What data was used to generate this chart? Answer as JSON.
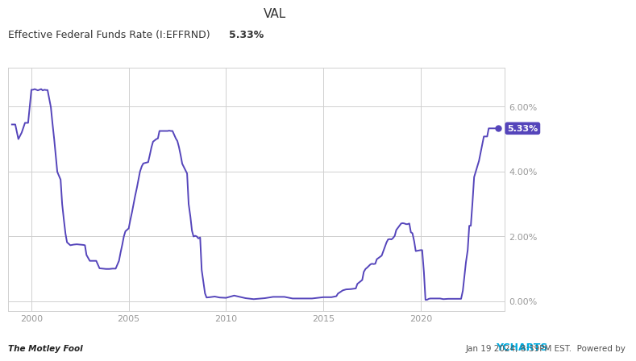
{
  "title": "VAL",
  "subtitle": "Effective Federal Funds Rate (I:EFFRND)",
  "subtitle_val": "5.33%",
  "line_color": "#5545bb",
  "bg_color": "#ffffff",
  "plot_bg_color": "#ffffff",
  "grid_color": "#d0d0d0",
  "label_color": "#333333",
  "tick_color": "#999999",
  "annotation_bg": "#5545bb",
  "annotation_text": "5.33%",
  "annotation_text_color": "#ffffff",
  "ylim": [
    -0.3,
    7.2
  ],
  "yticks": [
    0.0,
    2.0,
    4.0,
    6.0
  ],
  "xtick_positions": [
    2000,
    2005,
    2010,
    2015,
    2020
  ],
  "xtick_labels": [
    "2000",
    "2005",
    "2010",
    "2015",
    "2020"
  ],
  "xlim_left": 1998.8,
  "xlim_right": 2024.3,
  "footer_left": "The Motley Fool",
  "footer_right": "Jan 19 2024, 8:39PM EST.  Powered by YCHARTS",
  "data": [
    [
      1999.0,
      5.45
    ],
    [
      1999.17,
      5.45
    ],
    [
      1999.33,
      5.0
    ],
    [
      1999.5,
      5.2
    ],
    [
      1999.67,
      5.5
    ],
    [
      1999.83,
      5.5
    ],
    [
      2000.0,
      6.52
    ],
    [
      2000.08,
      6.52
    ],
    [
      2000.17,
      6.54
    ],
    [
      2000.33,
      6.5
    ],
    [
      2000.5,
      6.54
    ],
    [
      2000.58,
      6.5
    ],
    [
      2000.67,
      6.52
    ],
    [
      2000.75,
      6.51
    ],
    [
      2000.83,
      6.51
    ],
    [
      2001.0,
      5.98
    ],
    [
      2001.08,
      5.5
    ],
    [
      2001.17,
      5.0
    ],
    [
      2001.25,
      4.5
    ],
    [
      2001.33,
      3.99
    ],
    [
      2001.5,
      3.75
    ],
    [
      2001.58,
      3.0
    ],
    [
      2001.67,
      2.5
    ],
    [
      2001.75,
      2.09
    ],
    [
      2001.83,
      1.82
    ],
    [
      2002.0,
      1.73
    ],
    [
      2002.17,
      1.75
    ],
    [
      2002.33,
      1.76
    ],
    [
      2002.5,
      1.75
    ],
    [
      2002.67,
      1.74
    ],
    [
      2002.75,
      1.73
    ],
    [
      2002.83,
      1.43
    ],
    [
      2003.0,
      1.25
    ],
    [
      2003.33,
      1.25
    ],
    [
      2003.5,
      1.02
    ],
    [
      2003.67,
      1.01
    ],
    [
      2003.83,
      1.0
    ],
    [
      2004.0,
      1.0
    ],
    [
      2004.17,
      1.01
    ],
    [
      2004.33,
      1.01
    ],
    [
      2004.5,
      1.25
    ],
    [
      2004.58,
      1.5
    ],
    [
      2004.67,
      1.75
    ],
    [
      2004.75,
      2.0
    ],
    [
      2004.83,
      2.16
    ],
    [
      2005.0,
      2.25
    ],
    [
      2005.08,
      2.5
    ],
    [
      2005.17,
      2.75
    ],
    [
      2005.25,
      3.0
    ],
    [
      2005.33,
      3.25
    ],
    [
      2005.42,
      3.5
    ],
    [
      2005.5,
      3.75
    ],
    [
      2005.58,
      4.0
    ],
    [
      2005.67,
      4.16
    ],
    [
      2005.75,
      4.25
    ],
    [
      2006.0,
      4.29
    ],
    [
      2006.08,
      4.5
    ],
    [
      2006.17,
      4.75
    ],
    [
      2006.25,
      4.92
    ],
    [
      2006.42,
      5.0
    ],
    [
      2006.5,
      5.02
    ],
    [
      2006.58,
      5.25
    ],
    [
      2006.67,
      5.25
    ],
    [
      2006.75,
      5.25
    ],
    [
      2007.0,
      5.25
    ],
    [
      2007.08,
      5.26
    ],
    [
      2007.17,
      5.25
    ],
    [
      2007.25,
      5.25
    ],
    [
      2007.42,
      5.02
    ],
    [
      2007.5,
      4.94
    ],
    [
      2007.58,
      4.76
    ],
    [
      2007.67,
      4.5
    ],
    [
      2007.75,
      4.24
    ],
    [
      2008.0,
      3.94
    ],
    [
      2008.08,
      3.0
    ],
    [
      2008.17,
      2.61
    ],
    [
      2008.25,
      2.18
    ],
    [
      2008.33,
      2.0
    ],
    [
      2008.42,
      2.02
    ],
    [
      2008.5,
      2.0
    ],
    [
      2008.58,
      1.94
    ],
    [
      2008.67,
      1.97
    ],
    [
      2008.75,
      0.97
    ],
    [
      2008.92,
      0.25
    ],
    [
      2009.0,
      0.12
    ],
    [
      2009.17,
      0.13
    ],
    [
      2009.42,
      0.15
    ],
    [
      2009.67,
      0.12
    ],
    [
      2010.0,
      0.11
    ],
    [
      2010.42,
      0.18
    ],
    [
      2011.0,
      0.1
    ],
    [
      2011.42,
      0.07
    ],
    [
      2012.0,
      0.1
    ],
    [
      2012.42,
      0.14
    ],
    [
      2013.0,
      0.14
    ],
    [
      2013.42,
      0.09
    ],
    [
      2014.0,
      0.09
    ],
    [
      2014.42,
      0.09
    ],
    [
      2015.0,
      0.13
    ],
    [
      2015.42,
      0.13
    ],
    [
      2015.67,
      0.16
    ],
    [
      2015.75,
      0.24
    ],
    [
      2016.0,
      0.34
    ],
    [
      2016.17,
      0.37
    ],
    [
      2016.42,
      0.38
    ],
    [
      2016.67,
      0.4
    ],
    [
      2016.75,
      0.54
    ],
    [
      2017.0,
      0.66
    ],
    [
      2017.08,
      0.91
    ],
    [
      2017.17,
      1.0
    ],
    [
      2017.25,
      1.04
    ],
    [
      2017.42,
      1.14
    ],
    [
      2017.5,
      1.16
    ],
    [
      2017.58,
      1.15
    ],
    [
      2017.67,
      1.16
    ],
    [
      2017.75,
      1.3
    ],
    [
      2018.0,
      1.41
    ],
    [
      2018.08,
      1.54
    ],
    [
      2018.17,
      1.68
    ],
    [
      2018.25,
      1.82
    ],
    [
      2018.33,
      1.91
    ],
    [
      2018.42,
      1.92
    ],
    [
      2018.5,
      1.91
    ],
    [
      2018.58,
      1.95
    ],
    [
      2018.67,
      2.02
    ],
    [
      2018.75,
      2.2
    ],
    [
      2019.0,
      2.4
    ],
    [
      2019.08,
      2.41
    ],
    [
      2019.17,
      2.4
    ],
    [
      2019.25,
      2.38
    ],
    [
      2019.33,
      2.38
    ],
    [
      2019.42,
      2.4
    ],
    [
      2019.5,
      2.13
    ],
    [
      2019.58,
      2.1
    ],
    [
      2019.67,
      1.85
    ],
    [
      2019.75,
      1.55
    ],
    [
      2020.0,
      1.58
    ],
    [
      2020.08,
      1.58
    ],
    [
      2020.17,
      0.9
    ],
    [
      2020.25,
      0.05
    ],
    [
      2020.33,
      0.05
    ],
    [
      2020.42,
      0.08
    ],
    [
      2020.5,
      0.09
    ],
    [
      2020.58,
      0.09
    ],
    [
      2020.67,
      0.09
    ],
    [
      2020.75,
      0.09
    ],
    [
      2021.0,
      0.09
    ],
    [
      2021.17,
      0.07
    ],
    [
      2021.42,
      0.08
    ],
    [
      2021.58,
      0.08
    ],
    [
      2021.75,
      0.08
    ],
    [
      2022.0,
      0.08
    ],
    [
      2022.08,
      0.08
    ],
    [
      2022.17,
      0.33
    ],
    [
      2022.25,
      0.77
    ],
    [
      2022.33,
      1.21
    ],
    [
      2022.42,
      1.58
    ],
    [
      2022.5,
      2.33
    ],
    [
      2022.58,
      2.33
    ],
    [
      2022.67,
      3.08
    ],
    [
      2022.75,
      3.83
    ],
    [
      2023.0,
      4.33
    ],
    [
      2023.08,
      4.57
    ],
    [
      2023.17,
      4.83
    ],
    [
      2023.25,
      5.08
    ],
    [
      2023.33,
      5.08
    ],
    [
      2023.42,
      5.08
    ],
    [
      2023.5,
      5.33
    ],
    [
      2023.58,
      5.33
    ],
    [
      2023.67,
      5.33
    ],
    [
      2023.75,
      5.33
    ],
    [
      2023.92,
      5.33
    ],
    [
      2024.0,
      5.33
    ]
  ]
}
